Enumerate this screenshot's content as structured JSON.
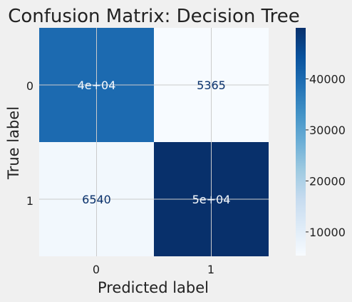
{
  "chart_data": {
    "type": "heatmap",
    "title": "Confusion Matrix: Decision Tree",
    "xlabel": "Predicted label",
    "ylabel": "True label",
    "x_categories": [
      "0",
      "1"
    ],
    "y_categories": [
      "0",
      "1"
    ],
    "values": [
      [
        40000,
        5365
      ],
      [
        6540,
        50000
      ]
    ],
    "cell_labels": [
      [
        "4e+04",
        "5365"
      ],
      [
        "6540",
        "5e+04"
      ]
    ],
    "colormap": "Blues",
    "colorbar": {
      "range": [
        5365,
        50000
      ],
      "ticks": [
        10000,
        20000,
        30000,
        40000
      ],
      "tick_labels": [
        "10000",
        "20000",
        "30000",
        "40000"
      ]
    },
    "grid": true
  },
  "colors": {
    "background": "#f0f0f0",
    "grid": "#cbcbcb",
    "text_dark": "#08306b",
    "text_light": "#f7fbff"
  }
}
